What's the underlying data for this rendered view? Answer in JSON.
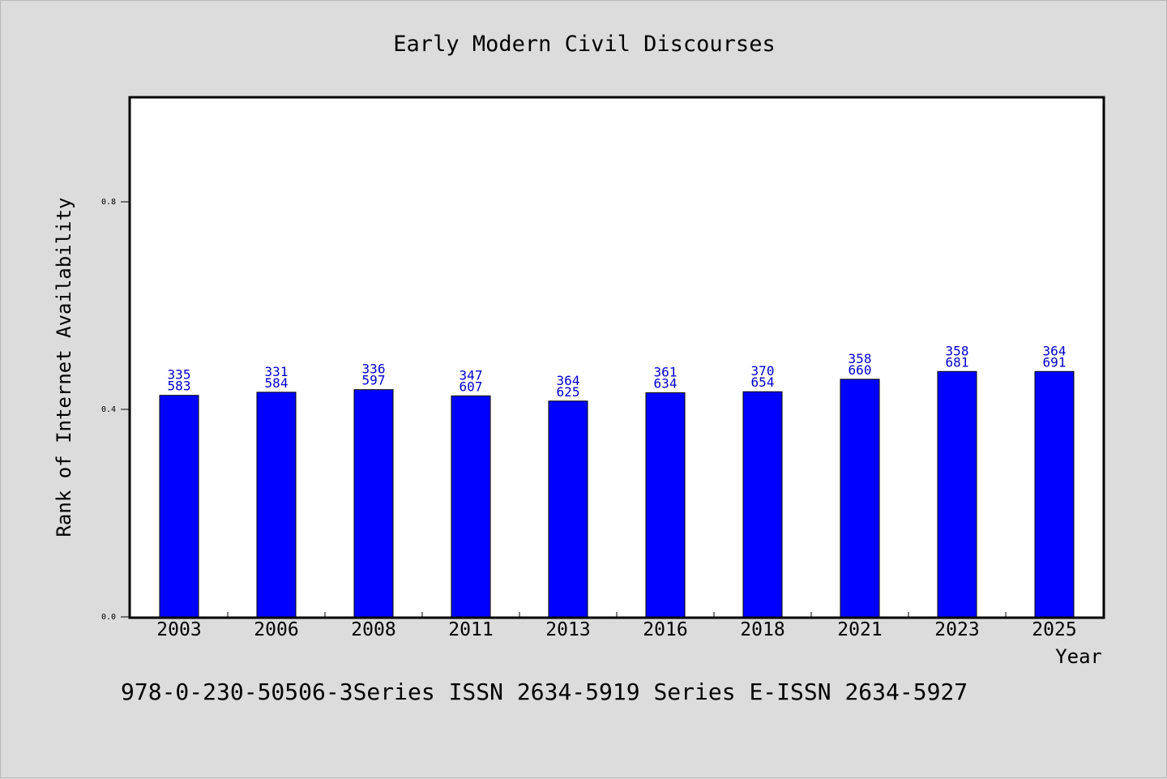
{
  "chart_data": {
    "type": "bar",
    "title": "Early Modern Civil Discourses",
    "xlabel": "Year",
    "ylabel": "Rank of Internet Availability",
    "footer": "978-0-230-50506-3Series ISSN 2634-5919 Series E-ISSN 2634-5927",
    "categories": [
      "2003",
      "2006",
      "2008",
      "2011",
      "2013",
      "2016",
      "2018",
      "2021",
      "2023",
      "2025"
    ],
    "values": [
      0.427,
      0.433,
      0.438,
      0.426,
      0.416,
      0.432,
      0.434,
      0.458,
      0.473,
      0.473
    ],
    "label_top": [
      "335",
      "331",
      "336",
      "347",
      "364",
      "361",
      "370",
      "358",
      "358",
      "364"
    ],
    "label_bottom": [
      "583",
      "584",
      "597",
      "607",
      "625",
      "634",
      "654",
      "660",
      "681",
      "691"
    ],
    "ylim": [
      0,
      1.0
    ],
    "yticks": [
      0.0,
      0.4,
      0.8
    ],
    "ytick_labels": [
      "0.0",
      "0.4",
      "0.8"
    ],
    "grid": false,
    "colors": {
      "bar": "#0000ff",
      "label": "#0000cc",
      "plot_bg": "#ffffff",
      "page_bg": "#dcdcdc"
    }
  }
}
